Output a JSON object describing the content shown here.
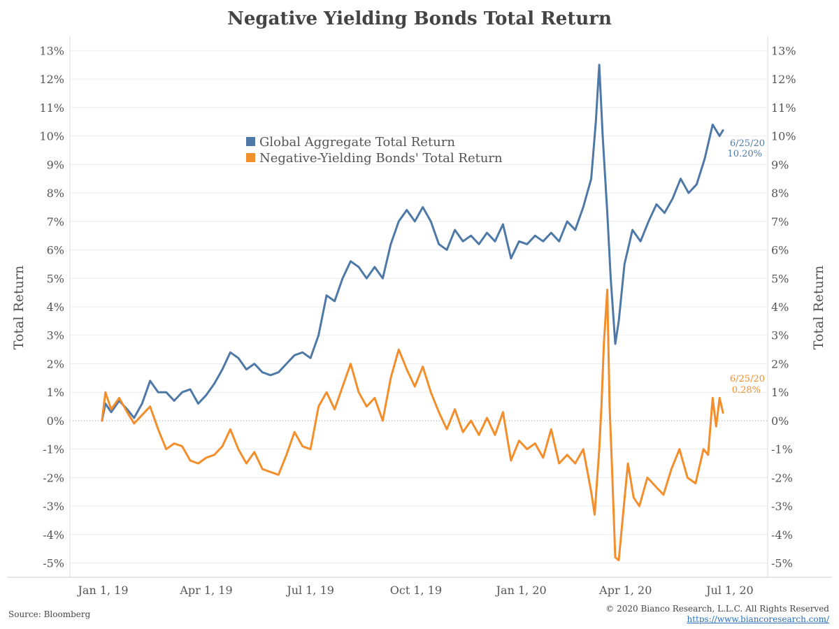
{
  "header": {
    "title": "Negative Yielding Bonds Total Return"
  },
  "footer": {
    "source": "Source: Bloomberg",
    "copyright": "© 2020 Bianco Research, L.L.C. All Rights Reserved",
    "url": "https://www.biancoresearch.com/"
  },
  "chart_data": {
    "type": "line",
    "title": "Negative Yielding Bonds Total Return",
    "ylabel_left": "Total Return",
    "ylabel_right": "Total Return",
    "ylim": [
      -5.5,
      13.5
    ],
    "y_ticks": [
      13,
      12,
      11,
      10,
      9,
      8,
      7,
      6,
      5,
      4,
      3,
      2,
      1,
      0,
      -1,
      -2,
      -3,
      -4,
      -5
    ],
    "y_tick_labels": [
      "13%",
      "12%",
      "11%",
      "10%",
      "9%",
      "8%",
      "7%",
      "6%",
      "5%",
      "4%",
      "3%",
      "2%",
      "1%",
      "0%",
      "-1%",
      "-2%",
      "-3%",
      "-4%",
      "-5%"
    ],
    "xlim": [
      "2018-12-03",
      "2020-08-03"
    ],
    "x_ticks": [
      "2019-01-01",
      "2019-04-01",
      "2019-07-01",
      "2019-10-01",
      "2020-01-01",
      "2020-04-01",
      "2020-07-01"
    ],
    "x_tick_labels": [
      "Jan 1, 19",
      "Apr 1, 19",
      "Jul 1, 19",
      "Oct 1, 19",
      "Jan 1, 20",
      "Apr 1, 20",
      "Jul 1, 20"
    ],
    "grid": true,
    "legend_position": "top-center",
    "series": [
      {
        "name": "Global Aggregate Total Return",
        "color": "#4e79a7",
        "end_label_date": "6/25/20",
        "end_label_value": "10.20%",
        "points": [
          [
            "2018-12-31",
            0.0
          ],
          [
            "2019-01-03",
            0.6
          ],
          [
            "2019-01-08",
            0.3
          ],
          [
            "2019-01-15",
            0.7
          ],
          [
            "2019-01-22",
            0.4
          ],
          [
            "2019-01-28",
            0.1
          ],
          [
            "2019-02-04",
            0.6
          ],
          [
            "2019-02-11",
            1.4
          ],
          [
            "2019-02-18",
            1.0
          ],
          [
            "2019-02-25",
            1.0
          ],
          [
            "2019-03-04",
            0.7
          ],
          [
            "2019-03-11",
            1.0
          ],
          [
            "2019-03-18",
            1.1
          ],
          [
            "2019-03-25",
            0.6
          ],
          [
            "2019-04-01",
            0.9
          ],
          [
            "2019-04-08",
            1.3
          ],
          [
            "2019-04-15",
            1.8
          ],
          [
            "2019-04-22",
            2.4
          ],
          [
            "2019-04-29",
            2.2
          ],
          [
            "2019-05-06",
            1.8
          ],
          [
            "2019-05-13",
            2.0
          ],
          [
            "2019-05-20",
            1.7
          ],
          [
            "2019-05-27",
            1.6
          ],
          [
            "2019-06-03",
            1.7
          ],
          [
            "2019-06-10",
            2.0
          ],
          [
            "2019-06-17",
            2.3
          ],
          [
            "2019-06-24",
            2.4
          ],
          [
            "2019-07-01",
            2.2
          ],
          [
            "2019-07-08",
            3.0
          ],
          [
            "2019-07-15",
            4.4
          ],
          [
            "2019-07-22",
            4.2
          ],
          [
            "2019-07-29",
            5.0
          ],
          [
            "2019-08-05",
            5.6
          ],
          [
            "2019-08-12",
            5.4
          ],
          [
            "2019-08-19",
            5.0
          ],
          [
            "2019-08-26",
            5.4
          ],
          [
            "2019-09-02",
            5.0
          ],
          [
            "2019-09-09",
            6.2
          ],
          [
            "2019-09-16",
            7.0
          ],
          [
            "2019-09-23",
            7.4
          ],
          [
            "2019-09-30",
            7.0
          ],
          [
            "2019-10-07",
            7.5
          ],
          [
            "2019-10-14",
            7.0
          ],
          [
            "2019-10-21",
            6.2
          ],
          [
            "2019-10-28",
            6.0
          ],
          [
            "2019-11-04",
            6.7
          ],
          [
            "2019-11-11",
            6.3
          ],
          [
            "2019-11-18",
            6.5
          ],
          [
            "2019-11-25",
            6.2
          ],
          [
            "2019-12-02",
            6.6
          ],
          [
            "2019-12-09",
            6.3
          ],
          [
            "2019-12-16",
            6.9
          ],
          [
            "2019-12-23",
            5.7
          ],
          [
            "2019-12-30",
            6.3
          ],
          [
            "2020-01-06",
            6.2
          ],
          [
            "2020-01-13",
            6.5
          ],
          [
            "2020-01-20",
            6.3
          ],
          [
            "2020-01-27",
            6.6
          ],
          [
            "2020-02-03",
            6.3
          ],
          [
            "2020-02-10",
            7.0
          ],
          [
            "2020-02-17",
            6.7
          ],
          [
            "2020-02-24",
            7.5
          ],
          [
            "2020-03-02",
            8.5
          ],
          [
            "2020-03-06",
            10.5
          ],
          [
            "2020-03-09",
            12.5
          ],
          [
            "2020-03-12",
            10.0
          ],
          [
            "2020-03-16",
            7.3
          ],
          [
            "2020-03-19",
            5.0
          ],
          [
            "2020-03-23",
            2.7
          ],
          [
            "2020-03-26",
            3.5
          ],
          [
            "2020-03-31",
            5.5
          ],
          [
            "2020-04-07",
            6.7
          ],
          [
            "2020-04-14",
            6.3
          ],
          [
            "2020-04-21",
            7.0
          ],
          [
            "2020-04-28",
            7.6
          ],
          [
            "2020-05-05",
            7.3
          ],
          [
            "2020-05-12",
            7.8
          ],
          [
            "2020-05-19",
            8.5
          ],
          [
            "2020-05-26",
            8.0
          ],
          [
            "2020-06-02",
            8.3
          ],
          [
            "2020-06-09",
            9.2
          ],
          [
            "2020-06-16",
            10.4
          ],
          [
            "2020-06-22",
            10.0
          ],
          [
            "2020-06-25",
            10.2
          ]
        ]
      },
      {
        "name": "Negative-Yielding Bonds' Total Return",
        "color": "#f28e2b",
        "end_label_date": "6/25/20",
        "end_label_value": "0.28%",
        "points": [
          [
            "2018-12-31",
            0.0
          ],
          [
            "2019-01-03",
            1.0
          ],
          [
            "2019-01-08",
            0.4
          ],
          [
            "2019-01-15",
            0.8
          ],
          [
            "2019-01-22",
            0.3
          ],
          [
            "2019-01-28",
            -0.1
          ],
          [
            "2019-02-04",
            0.2
          ],
          [
            "2019-02-11",
            0.5
          ],
          [
            "2019-02-18",
            -0.3
          ],
          [
            "2019-02-25",
            -1.0
          ],
          [
            "2019-03-04",
            -0.8
          ],
          [
            "2019-03-11",
            -0.9
          ],
          [
            "2019-03-18",
            -1.4
          ],
          [
            "2019-03-25",
            -1.5
          ],
          [
            "2019-04-01",
            -1.3
          ],
          [
            "2019-04-08",
            -1.2
          ],
          [
            "2019-04-15",
            -0.9
          ],
          [
            "2019-04-22",
            -0.3
          ],
          [
            "2019-04-29",
            -1.0
          ],
          [
            "2019-05-06",
            -1.5
          ],
          [
            "2019-05-13",
            -1.1
          ],
          [
            "2019-05-20",
            -1.7
          ],
          [
            "2019-05-27",
            -1.8
          ],
          [
            "2019-06-03",
            -1.9
          ],
          [
            "2019-06-10",
            -1.2
          ],
          [
            "2019-06-17",
            -0.4
          ],
          [
            "2019-06-24",
            -0.9
          ],
          [
            "2019-07-01",
            -1.0
          ],
          [
            "2019-07-08",
            0.5
          ],
          [
            "2019-07-15",
            1.0
          ],
          [
            "2019-07-22",
            0.4
          ],
          [
            "2019-07-29",
            1.2
          ],
          [
            "2019-08-05",
            2.0
          ],
          [
            "2019-08-12",
            1.0
          ],
          [
            "2019-08-19",
            0.5
          ],
          [
            "2019-08-26",
            0.8
          ],
          [
            "2019-09-02",
            0.0
          ],
          [
            "2019-09-09",
            1.5
          ],
          [
            "2019-09-16",
            2.5
          ],
          [
            "2019-09-23",
            1.8
          ],
          [
            "2019-09-30",
            1.2
          ],
          [
            "2019-10-07",
            1.9
          ],
          [
            "2019-10-14",
            1.0
          ],
          [
            "2019-10-21",
            0.3
          ],
          [
            "2019-10-28",
            -0.3
          ],
          [
            "2019-11-04",
            0.4
          ],
          [
            "2019-11-11",
            -0.4
          ],
          [
            "2019-11-18",
            0.0
          ],
          [
            "2019-11-25",
            -0.5
          ],
          [
            "2019-12-02",
            0.1
          ],
          [
            "2019-12-09",
            -0.5
          ],
          [
            "2019-12-16",
            0.3
          ],
          [
            "2019-12-23",
            -1.4
          ],
          [
            "2019-12-30",
            -0.7
          ],
          [
            "2020-01-06",
            -1.0
          ],
          [
            "2020-01-13",
            -0.8
          ],
          [
            "2020-01-20",
            -1.3
          ],
          [
            "2020-01-27",
            -0.3
          ],
          [
            "2020-02-03",
            -1.5
          ],
          [
            "2020-02-10",
            -1.2
          ],
          [
            "2020-02-17",
            -1.5
          ],
          [
            "2020-02-24",
            -1.0
          ],
          [
            "2020-03-02",
            -2.5
          ],
          [
            "2020-03-05",
            -3.3
          ],
          [
            "2020-03-09",
            -1.0
          ],
          [
            "2020-03-11",
            0.6
          ],
          [
            "2020-03-13",
            2.7
          ],
          [
            "2020-03-16",
            4.6
          ],
          [
            "2020-03-18",
            0.5
          ],
          [
            "2020-03-20",
            -1.5
          ],
          [
            "2020-03-23",
            -4.8
          ],
          [
            "2020-03-26",
            -4.9
          ],
          [
            "2020-03-30",
            -3.2
          ],
          [
            "2020-04-03",
            -1.5
          ],
          [
            "2020-04-08",
            -2.7
          ],
          [
            "2020-04-13",
            -3.0
          ],
          [
            "2020-04-20",
            -2.0
          ],
          [
            "2020-04-27",
            -2.3
          ],
          [
            "2020-05-04",
            -2.6
          ],
          [
            "2020-05-11",
            -1.7
          ],
          [
            "2020-05-18",
            -1.0
          ],
          [
            "2020-05-25",
            -2.0
          ],
          [
            "2020-06-01",
            -2.2
          ],
          [
            "2020-06-08",
            -1.0
          ],
          [
            "2020-06-12",
            -1.2
          ],
          [
            "2020-06-16",
            0.8
          ],
          [
            "2020-06-19",
            -0.2
          ],
          [
            "2020-06-22",
            0.8
          ],
          [
            "2020-06-25",
            0.28
          ]
        ]
      }
    ]
  }
}
